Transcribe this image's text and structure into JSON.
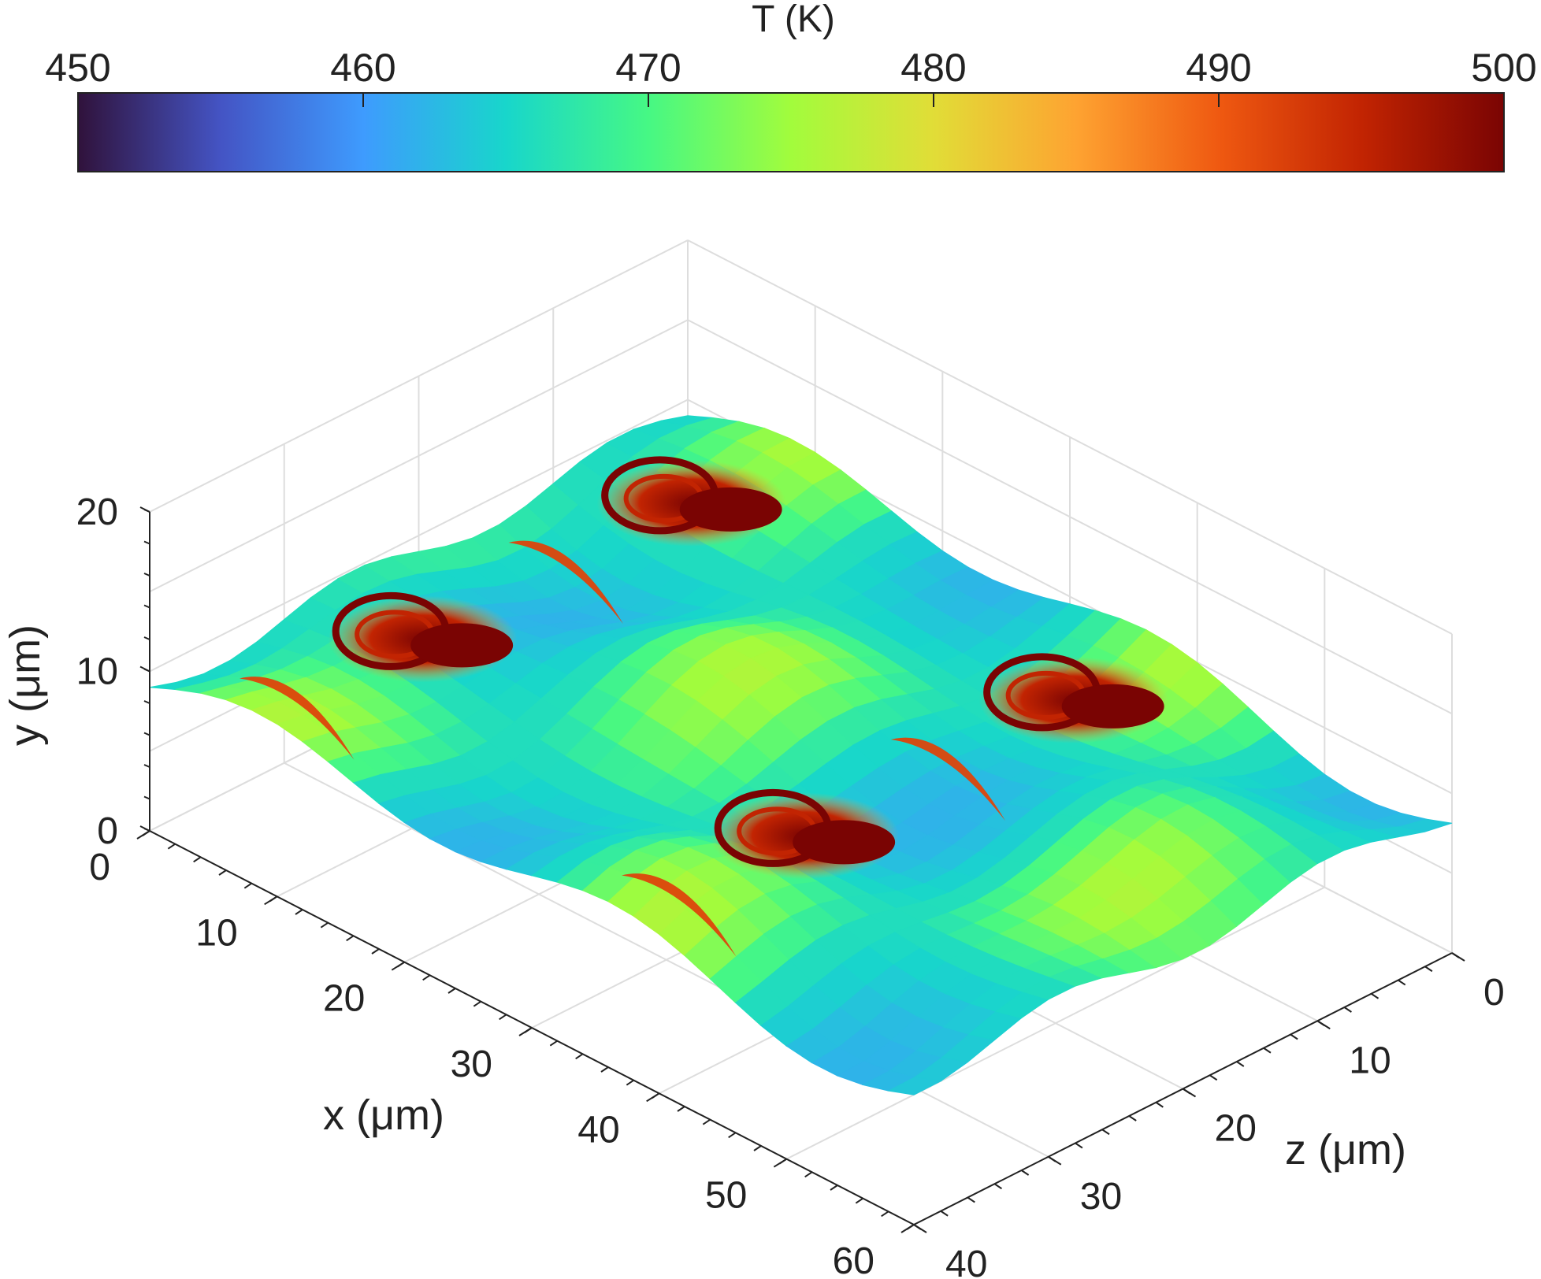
{
  "chart_data": {
    "type": "surface3d",
    "colorbar": {
      "label": "T (K)",
      "ticks": [
        "450",
        "460",
        "470",
        "480",
        "490",
        "500"
      ],
      "range": [
        450,
        500
      ],
      "stops": [
        "#30123b",
        "#4454c4",
        "#3e9bfe",
        "#18d6cb",
        "#46f884",
        "#a2fc3c",
        "#e1dd37",
        "#fea331",
        "#ef5911",
        "#c22402",
        "#7a0403"
      ]
    },
    "axes": {
      "x": {
        "label": "x (μm)",
        "ticks": [
          "0",
          "10",
          "20",
          "30",
          "40",
          "50",
          "60"
        ],
        "range": [
          0,
          60
        ]
      },
      "y": {
        "label": "y (μm)",
        "ticks": [
          "0",
          "10",
          "20"
        ],
        "range": [
          0,
          20
        ]
      },
      "z": {
        "label": "z (μm)",
        "ticks": [
          "0",
          "10",
          "20",
          "30",
          "40"
        ],
        "range": [
          0,
          40
        ]
      }
    },
    "grid": true,
    "surface": {
      "base_temperature": 466,
      "crest_temperature": 476,
      "valley_temperature": 462,
      "hot_spots": [
        {
          "x": 7.5,
          "z": 28,
          "y": 10.5,
          "T": 500
        },
        {
          "x": 37.5,
          "z": 28,
          "y": 10.5,
          "T": 500
        },
        {
          "x": 7.5,
          "z": 8,
          "y": 10.5,
          "T": 500
        },
        {
          "x": 37.5,
          "z": 8,
          "y": 10.5,
          "T": 500
        }
      ],
      "streaks": [
        {
          "x": 10,
          "z": 39,
          "y": 11,
          "T": 492
        },
        {
          "x": 40,
          "z": 39,
          "y": 11,
          "T": 492
        },
        {
          "x": 10,
          "z": 19,
          "y": 11,
          "T": 492
        },
        {
          "x": 40,
          "z": 19,
          "y": 11,
          "T": 492
        }
      ]
    }
  }
}
